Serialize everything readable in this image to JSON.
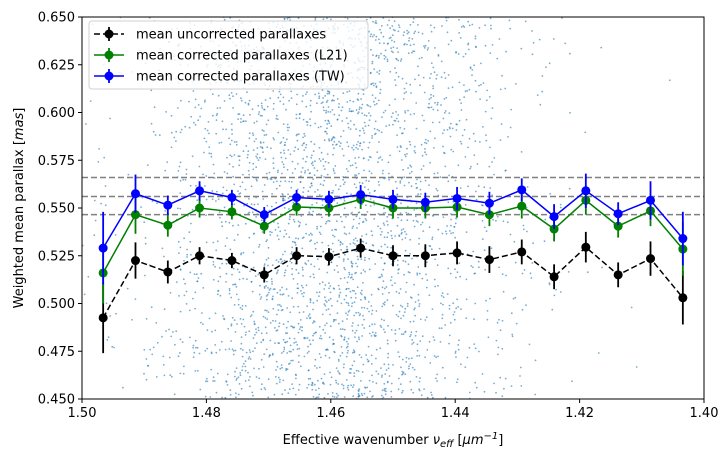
{
  "chart_data": {
    "type": "line",
    "xlabel": "Effective wavenumber ",
    "xlabel_var": "ν",
    "xlabel_sub": "eff",
    "xlabel_unit_pre": " [",
    "xlabel_unit": "μm",
    "xlabel_unit_sup": "−1",
    "xlabel_unit_post": "]",
    "ylabel": "Weighted mean parallax [",
    "ylabel_unit": "mas",
    "ylabel_post": "]",
    "xlim": [
      1.5,
      1.4
    ],
    "ylim": [
      0.45,
      0.65
    ],
    "x_ticks": [
      1.5,
      1.48,
      1.46,
      1.44,
      1.42,
      1.4
    ],
    "x_tick_labels": [
      "1.50",
      "1.48",
      "1.46",
      "1.44",
      "1.42",
      "1.40"
    ],
    "y_ticks": [
      0.45,
      0.475,
      0.5,
      0.525,
      0.55,
      0.575,
      0.6,
      0.625,
      0.65
    ],
    "y_tick_labels": [
      "0.450",
      "0.475",
      "0.500",
      "0.525",
      "0.550",
      "0.575",
      "0.600",
      "0.625",
      "0.650"
    ],
    "legend_position": "top-left",
    "x": [
      1.4966,
      1.4914,
      1.4862,
      1.4811,
      1.4759,
      1.4707,
      1.4655,
      1.4603,
      1.4552,
      1.45,
      1.4448,
      1.4397,
      1.4345,
      1.4293,
      1.4241,
      1.419,
      1.4138,
      1.4086,
      1.4034
    ],
    "series": [
      {
        "name": "mean uncorrected parallaxes",
        "color": "#000000",
        "linestyle": "dashed",
        "values": [
          0.4925,
          0.5225,
          0.5165,
          0.525,
          0.5225,
          0.515,
          0.525,
          0.5245,
          0.529,
          0.525,
          0.525,
          0.5265,
          0.523,
          0.527,
          0.514,
          0.5295,
          0.515,
          0.5235,
          0.503
        ],
        "errors": [
          0.0185,
          0.0095,
          0.006,
          0.0045,
          0.004,
          0.004,
          0.0045,
          0.0045,
          0.005,
          0.0055,
          0.006,
          0.006,
          0.007,
          0.0065,
          0.0065,
          0.008,
          0.0065,
          0.009,
          0.014
        ]
      },
      {
        "name": "mean corrected parallaxes (L21)",
        "color": "#008000",
        "linestyle": "solid",
        "values": [
          0.516,
          0.5465,
          0.541,
          0.55,
          0.548,
          0.5405,
          0.5505,
          0.55,
          0.5545,
          0.55,
          0.55,
          0.5505,
          0.5465,
          0.551,
          0.539,
          0.554,
          0.5405,
          0.5485,
          0.5285
        ],
        "errors": [
          0.016,
          0.01,
          0.006,
          0.005,
          0.004,
          0.004,
          0.0045,
          0.0045,
          0.005,
          0.0055,
          0.0055,
          0.0055,
          0.006,
          0.0065,
          0.0065,
          0.0075,
          0.006,
          0.008,
          0.014
        ]
      },
      {
        "name": "mean corrected parallaxes (TW)",
        "color": "#0000ff",
        "linestyle": "solid",
        "values": [
          0.529,
          0.5575,
          0.5515,
          0.559,
          0.5555,
          0.5465,
          0.5555,
          0.5545,
          0.557,
          0.5545,
          0.553,
          0.555,
          0.5525,
          0.5595,
          0.5455,
          0.559,
          0.547,
          0.554,
          0.534
        ],
        "errors": [
          0.019,
          0.01,
          0.005,
          0.005,
          0.004,
          0.004,
          0.004,
          0.0045,
          0.005,
          0.005,
          0.005,
          0.006,
          0.006,
          0.006,
          0.0065,
          0.009,
          0.006,
          0.01,
          0.014
        ]
      }
    ],
    "reference_lines": {
      "color": "#808080",
      "linestyle": "dashed",
      "values": [
        0.5465,
        0.556,
        0.566
      ]
    },
    "scatter_background": {
      "color": "#1f77b4",
      "description": "individual star parallaxes",
      "count_approx": 3000,
      "x_center": 1.46,
      "y_range": [
        0.45,
        0.65
      ]
    }
  }
}
